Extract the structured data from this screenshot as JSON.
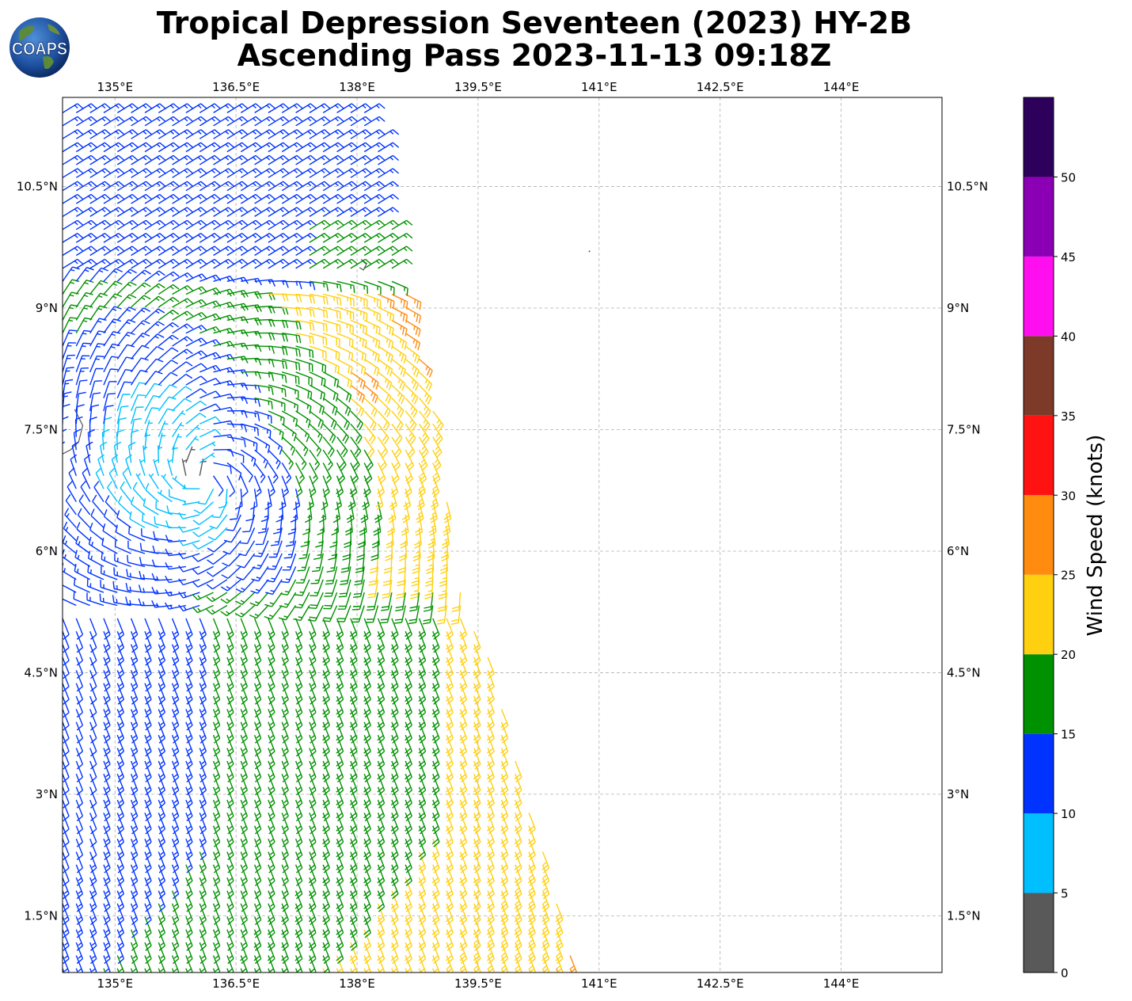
{
  "title": {
    "line1": "Tropical Depression Seventeen (2023) HY-2B",
    "line2": "Ascending Pass 2023-11-13 09:18Z"
  },
  "logo": {
    "text": "COAPS"
  },
  "colors": {
    "levels": [
      "#595959",
      "#00bfff",
      "#0033ff",
      "#009100",
      "#ffd00f",
      "#ff8c0f",
      "#ff1212",
      "#7d3a28",
      "#ff0ff0",
      "#8c00b5",
      "#2d005c"
    ],
    "land": "#555555",
    "grid": "#b0b0b0"
  },
  "chart_data": {
    "type": "wind_barbs",
    "xlim": [
      134.35,
      145.25
    ],
    "ylim": [
      0.8,
      11.6
    ],
    "x_ticks": [
      "135°E",
      "136.5°E",
      "138°E",
      "139.5°E",
      "141°E",
      "142.5°E",
      "144°E"
    ],
    "x_tick_values": [
      135,
      136.5,
      138,
      139.5,
      141,
      142.5,
      144
    ],
    "y_ticks": [
      "1.5°N",
      "3°N",
      "4.5°N",
      "6°N",
      "7.5°N",
      "9°N",
      "10.5°N"
    ],
    "y_tick_values": [
      1.5,
      3,
      4.5,
      6,
      7.5,
      9,
      10.5
    ],
    "grid": true,
    "colorbar": {
      "label": "Wind Speed (knots)",
      "bounds": [
        0,
        5,
        10,
        15,
        20,
        25,
        30,
        35,
        40,
        45,
        50,
        55
      ],
      "tick_labels": [
        "0",
        "5",
        "10",
        "15",
        "20",
        "25",
        "30",
        "35",
        "40",
        "45",
        "50"
      ]
    },
    "swath": {
      "lat_range": [
        0.85,
        11.55
      ],
      "west_edge_lon": 134.35,
      "east_edge_lon": [
        [
          0.85,
          140.7
        ],
        [
          2.0,
          140.4
        ],
        [
          3.0,
          140.1
        ],
        [
          4.5,
          139.7
        ],
        [
          5.5,
          139.3
        ],
        [
          6.5,
          139.15
        ],
        [
          7.5,
          139.0
        ],
        [
          8.5,
          138.75
        ],
        [
          9.5,
          138.55
        ],
        [
          10.5,
          138.35
        ],
        [
          11.55,
          138.2
        ]
      ]
    },
    "circulation_center": [
      136.1,
      6.9
    ],
    "wind_speed_regions": [
      {
        "range": "5-10",
        "note": "light winds near circulation center (west)",
        "lon": [
          134.35,
          136.8
        ],
        "lat": [
          6.0,
          9.0
        ]
      },
      {
        "range": "10-15",
        "note": "northeast flow north of 9N, southeast flow south of 6N"
      },
      {
        "range": "15-20",
        "note": "east and southeast sectors"
      },
      {
        "range": "20-25",
        "note": "band northeast of center",
        "lon": [
          137.2,
          138.7
        ],
        "lat": [
          6.6,
          9.3
        ]
      },
      {
        "range": "25-30",
        "note": "isolated maximum",
        "lon": [
          137.8,
          138.1
        ],
        "lat": [
          8.0,
          8.3
        ]
      }
    ]
  }
}
